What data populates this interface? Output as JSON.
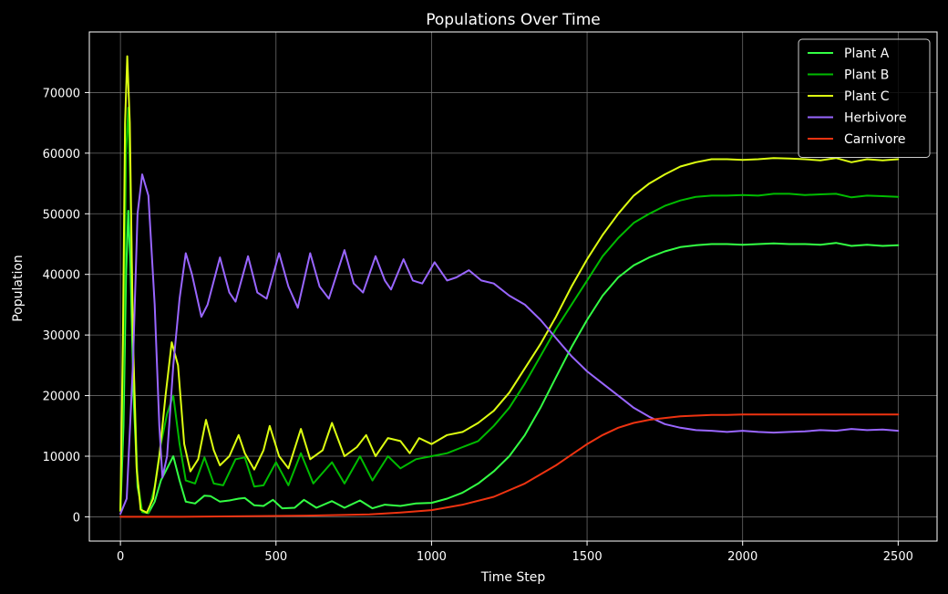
{
  "chart_data": {
    "type": "line",
    "title": "Populations Over Time",
    "xlabel": "Time Step",
    "ylabel": "Population",
    "xlim": [
      -100,
      2625
    ],
    "ylim": [
      -4000,
      80000
    ],
    "xticks": [
      0,
      500,
      1000,
      1500,
      2000,
      2500
    ],
    "yticks": [
      0,
      10000,
      20000,
      30000,
      40000,
      50000,
      60000,
      70000
    ],
    "grid": true,
    "legend_position": "top-right",
    "series": [
      {
        "name": "Plant A",
        "color": "#33ff44",
        "points": [
          [
            0,
            1000
          ],
          [
            10,
            15000
          ],
          [
            18,
            40000
          ],
          [
            25,
            50500
          ],
          [
            32,
            42000
          ],
          [
            42,
            20000
          ],
          [
            55,
            5000
          ],
          [
            70,
            800
          ],
          [
            90,
            600
          ],
          [
            110,
            2500
          ],
          [
            130,
            6000
          ],
          [
            150,
            8000
          ],
          [
            170,
            10000
          ],
          [
            190,
            6000
          ],
          [
            210,
            2500
          ],
          [
            240,
            2200
          ],
          [
            270,
            3500
          ],
          [
            290,
            3400
          ],
          [
            320,
            2500
          ],
          [
            350,
            2700
          ],
          [
            380,
            3000
          ],
          [
            400,
            3100
          ],
          [
            430,
            1900
          ],
          [
            460,
            1800
          ],
          [
            490,
            2800
          ],
          [
            520,
            1400
          ],
          [
            560,
            1500
          ],
          [
            590,
            2800
          ],
          [
            630,
            1500
          ],
          [
            680,
            2600
          ],
          [
            720,
            1500
          ],
          [
            770,
            2700
          ],
          [
            810,
            1400
          ],
          [
            850,
            2000
          ],
          [
            900,
            1800
          ],
          [
            950,
            2200
          ],
          [
            1000,
            2300
          ],
          [
            1050,
            3000
          ],
          [
            1100,
            4000
          ],
          [
            1150,
            5500
          ],
          [
            1200,
            7500
          ],
          [
            1250,
            10000
          ],
          [
            1300,
            13500
          ],
          [
            1350,
            18000
          ],
          [
            1400,
            23000
          ],
          [
            1450,
            28000
          ],
          [
            1500,
            32500
          ],
          [
            1550,
            36500
          ],
          [
            1600,
            39500
          ],
          [
            1650,
            41500
          ],
          [
            1700,
            42800
          ],
          [
            1750,
            43800
          ],
          [
            1800,
            44500
          ],
          [
            1850,
            44800
          ],
          [
            1900,
            45000
          ],
          [
            1950,
            45000
          ],
          [
            2000,
            44900
          ],
          [
            2050,
            45000
          ],
          [
            2100,
            45100
          ],
          [
            2150,
            45000
          ],
          [
            2200,
            45000
          ],
          [
            2250,
            44900
          ],
          [
            2300,
            45200
          ],
          [
            2350,
            44700
          ],
          [
            2400,
            44900
          ],
          [
            2450,
            44700
          ],
          [
            2500,
            44800
          ]
        ]
      },
      {
        "name": "Plant B",
        "color": "#00bb00",
        "points": [
          [
            0,
            1000
          ],
          [
            10,
            25000
          ],
          [
            18,
            60000
          ],
          [
            25,
            67500
          ],
          [
            32,
            55000
          ],
          [
            42,
            25000
          ],
          [
            55,
            6000
          ],
          [
            70,
            800
          ],
          [
            90,
            700
          ],
          [
            110,
            5000
          ],
          [
            130,
            12000
          ],
          [
            150,
            17000
          ],
          [
            170,
            20000
          ],
          [
            190,
            12000
          ],
          [
            210,
            6000
          ],
          [
            240,
            5500
          ],
          [
            270,
            9800
          ],
          [
            300,
            5500
          ],
          [
            330,
            5200
          ],
          [
            370,
            9500
          ],
          [
            400,
            9800
          ],
          [
            430,
            5000
          ],
          [
            460,
            5200
          ],
          [
            500,
            9000
          ],
          [
            540,
            5200
          ],
          [
            580,
            10500
          ],
          [
            620,
            5500
          ],
          [
            680,
            9000
          ],
          [
            720,
            5500
          ],
          [
            770,
            10000
          ],
          [
            810,
            6000
          ],
          [
            860,
            10000
          ],
          [
            900,
            8000
          ],
          [
            950,
            9500
          ],
          [
            1000,
            10000
          ],
          [
            1050,
            10500
          ],
          [
            1100,
            11500
          ],
          [
            1150,
            12500
          ],
          [
            1200,
            15000
          ],
          [
            1250,
            18000
          ],
          [
            1300,
            22000
          ],
          [
            1350,
            26500
          ],
          [
            1400,
            31000
          ],
          [
            1450,
            35000
          ],
          [
            1500,
            39000
          ],
          [
            1550,
            43000
          ],
          [
            1600,
            46000
          ],
          [
            1650,
            48500
          ],
          [
            1700,
            50000
          ],
          [
            1750,
            51300
          ],
          [
            1800,
            52200
          ],
          [
            1850,
            52800
          ],
          [
            1900,
            53000
          ],
          [
            1950,
            53000
          ],
          [
            2000,
            53100
          ],
          [
            2050,
            53000
          ],
          [
            2100,
            53300
          ],
          [
            2150,
            53300
          ],
          [
            2200,
            53100
          ],
          [
            2250,
            53200
          ],
          [
            2300,
            53300
          ],
          [
            2350,
            52700
          ],
          [
            2400,
            53000
          ],
          [
            2450,
            52900
          ],
          [
            2500,
            52800
          ]
        ]
      },
      {
        "name": "Plant C",
        "color": "#ddff11",
        "points": [
          [
            0,
            1000
          ],
          [
            8,
            30000
          ],
          [
            15,
            65000
          ],
          [
            22,
            76000
          ],
          [
            30,
            65000
          ],
          [
            40,
            30000
          ],
          [
            52,
            8000
          ],
          [
            65,
            1200
          ],
          [
            85,
            700
          ],
          [
            105,
            3000
          ],
          [
            125,
            10000
          ],
          [
            145,
            20000
          ],
          [
            165,
            28800
          ],
          [
            185,
            25000
          ],
          [
            205,
            12000
          ],
          [
            225,
            7500
          ],
          [
            250,
            9500
          ],
          [
            275,
            16000
          ],
          [
            300,
            11000
          ],
          [
            320,
            8500
          ],
          [
            350,
            10000
          ],
          [
            380,
            13500
          ],
          [
            400,
            10500
          ],
          [
            430,
            7800
          ],
          [
            460,
            11000
          ],
          [
            480,
            15000
          ],
          [
            510,
            10000
          ],
          [
            540,
            8000
          ],
          [
            580,
            14500
          ],
          [
            610,
            9500
          ],
          [
            650,
            11000
          ],
          [
            680,
            15500
          ],
          [
            720,
            10000
          ],
          [
            760,
            11500
          ],
          [
            790,
            13500
          ],
          [
            820,
            10000
          ],
          [
            860,
            13000
          ],
          [
            900,
            12500
          ],
          [
            930,
            10500
          ],
          [
            960,
            13000
          ],
          [
            1000,
            12000
          ],
          [
            1050,
            13500
          ],
          [
            1100,
            14000
          ],
          [
            1150,
            15500
          ],
          [
            1200,
            17500
          ],
          [
            1250,
            20500
          ],
          [
            1300,
            24500
          ],
          [
            1350,
            28500
          ],
          [
            1400,
            33000
          ],
          [
            1450,
            38000
          ],
          [
            1500,
            42500
          ],
          [
            1550,
            46500
          ],
          [
            1600,
            50000
          ],
          [
            1650,
            53000
          ],
          [
            1700,
            55000
          ],
          [
            1750,
            56500
          ],
          [
            1800,
            57800
          ],
          [
            1850,
            58500
          ],
          [
            1900,
            59000
          ],
          [
            1950,
            59000
          ],
          [
            2000,
            58900
          ],
          [
            2050,
            59000
          ],
          [
            2100,
            59200
          ],
          [
            2150,
            59100
          ],
          [
            2200,
            59000
          ],
          [
            2250,
            58800
          ],
          [
            2300,
            59200
          ],
          [
            2350,
            58500
          ],
          [
            2400,
            59000
          ],
          [
            2450,
            58800
          ],
          [
            2500,
            59000
          ]
        ]
      },
      {
        "name": "Herbivore",
        "color": "#9966ff",
        "points": [
          [
            0,
            500
          ],
          [
            20,
            3000
          ],
          [
            40,
            25000
          ],
          [
            55,
            50000
          ],
          [
            70,
            56500
          ],
          [
            90,
            53000
          ],
          [
            110,
            35000
          ],
          [
            125,
            15000
          ],
          [
            135,
            6500
          ],
          [
            150,
            10000
          ],
          [
            170,
            25000
          ],
          [
            190,
            36000
          ],
          [
            210,
            43500
          ],
          [
            230,
            40000
          ],
          [
            260,
            33000
          ],
          [
            280,
            35000
          ],
          [
            320,
            42800
          ],
          [
            350,
            37000
          ],
          [
            370,
            35500
          ],
          [
            410,
            43000
          ],
          [
            440,
            37000
          ],
          [
            470,
            36000
          ],
          [
            510,
            43500
          ],
          [
            540,
            38000
          ],
          [
            570,
            34500
          ],
          [
            610,
            43500
          ],
          [
            640,
            38000
          ],
          [
            670,
            36000
          ],
          [
            720,
            44000
          ],
          [
            750,
            38500
          ],
          [
            780,
            37000
          ],
          [
            820,
            43000
          ],
          [
            850,
            39000
          ],
          [
            870,
            37500
          ],
          [
            910,
            42500
          ],
          [
            940,
            39000
          ],
          [
            970,
            38500
          ],
          [
            1010,
            42000
          ],
          [
            1050,
            39000
          ],
          [
            1080,
            39500
          ],
          [
            1120,
            40700
          ],
          [
            1160,
            39000
          ],
          [
            1200,
            38500
          ],
          [
            1250,
            36500
          ],
          [
            1300,
            35000
          ],
          [
            1350,
            32500
          ],
          [
            1400,
            29500
          ],
          [
            1450,
            26500
          ],
          [
            1500,
            24000
          ],
          [
            1550,
            22000
          ],
          [
            1600,
            20000
          ],
          [
            1650,
            18000
          ],
          [
            1700,
            16500
          ],
          [
            1750,
            15300
          ],
          [
            1800,
            14700
          ],
          [
            1850,
            14300
          ],
          [
            1900,
            14200
          ],
          [
            1950,
            14000
          ],
          [
            2000,
            14200
          ],
          [
            2050,
            14000
          ],
          [
            2100,
            13900
          ],
          [
            2150,
            14000
          ],
          [
            2200,
            14100
          ],
          [
            2250,
            14300
          ],
          [
            2300,
            14200
          ],
          [
            2350,
            14500
          ],
          [
            2400,
            14300
          ],
          [
            2450,
            14400
          ],
          [
            2500,
            14200
          ]
        ]
      },
      {
        "name": "Carnivore",
        "color": "#ee3311",
        "points": [
          [
            0,
            0
          ],
          [
            200,
            0
          ],
          [
            400,
            100
          ],
          [
            600,
            200
          ],
          [
            800,
            400
          ],
          [
            900,
            700
          ],
          [
            1000,
            1100
          ],
          [
            1100,
            2000
          ],
          [
            1200,
            3300
          ],
          [
            1300,
            5500
          ],
          [
            1400,
            8500
          ],
          [
            1500,
            12000
          ],
          [
            1550,
            13500
          ],
          [
            1600,
            14700
          ],
          [
            1650,
            15500
          ],
          [
            1700,
            16000
          ],
          [
            1750,
            16300
          ],
          [
            1800,
            16600
          ],
          [
            1850,
            16700
          ],
          [
            1900,
            16800
          ],
          [
            1950,
            16800
          ],
          [
            2000,
            16900
          ],
          [
            2100,
            16900
          ],
          [
            2200,
            16900
          ],
          [
            2300,
            16900
          ],
          [
            2400,
            16900
          ],
          [
            2500,
            16900
          ]
        ]
      }
    ]
  }
}
